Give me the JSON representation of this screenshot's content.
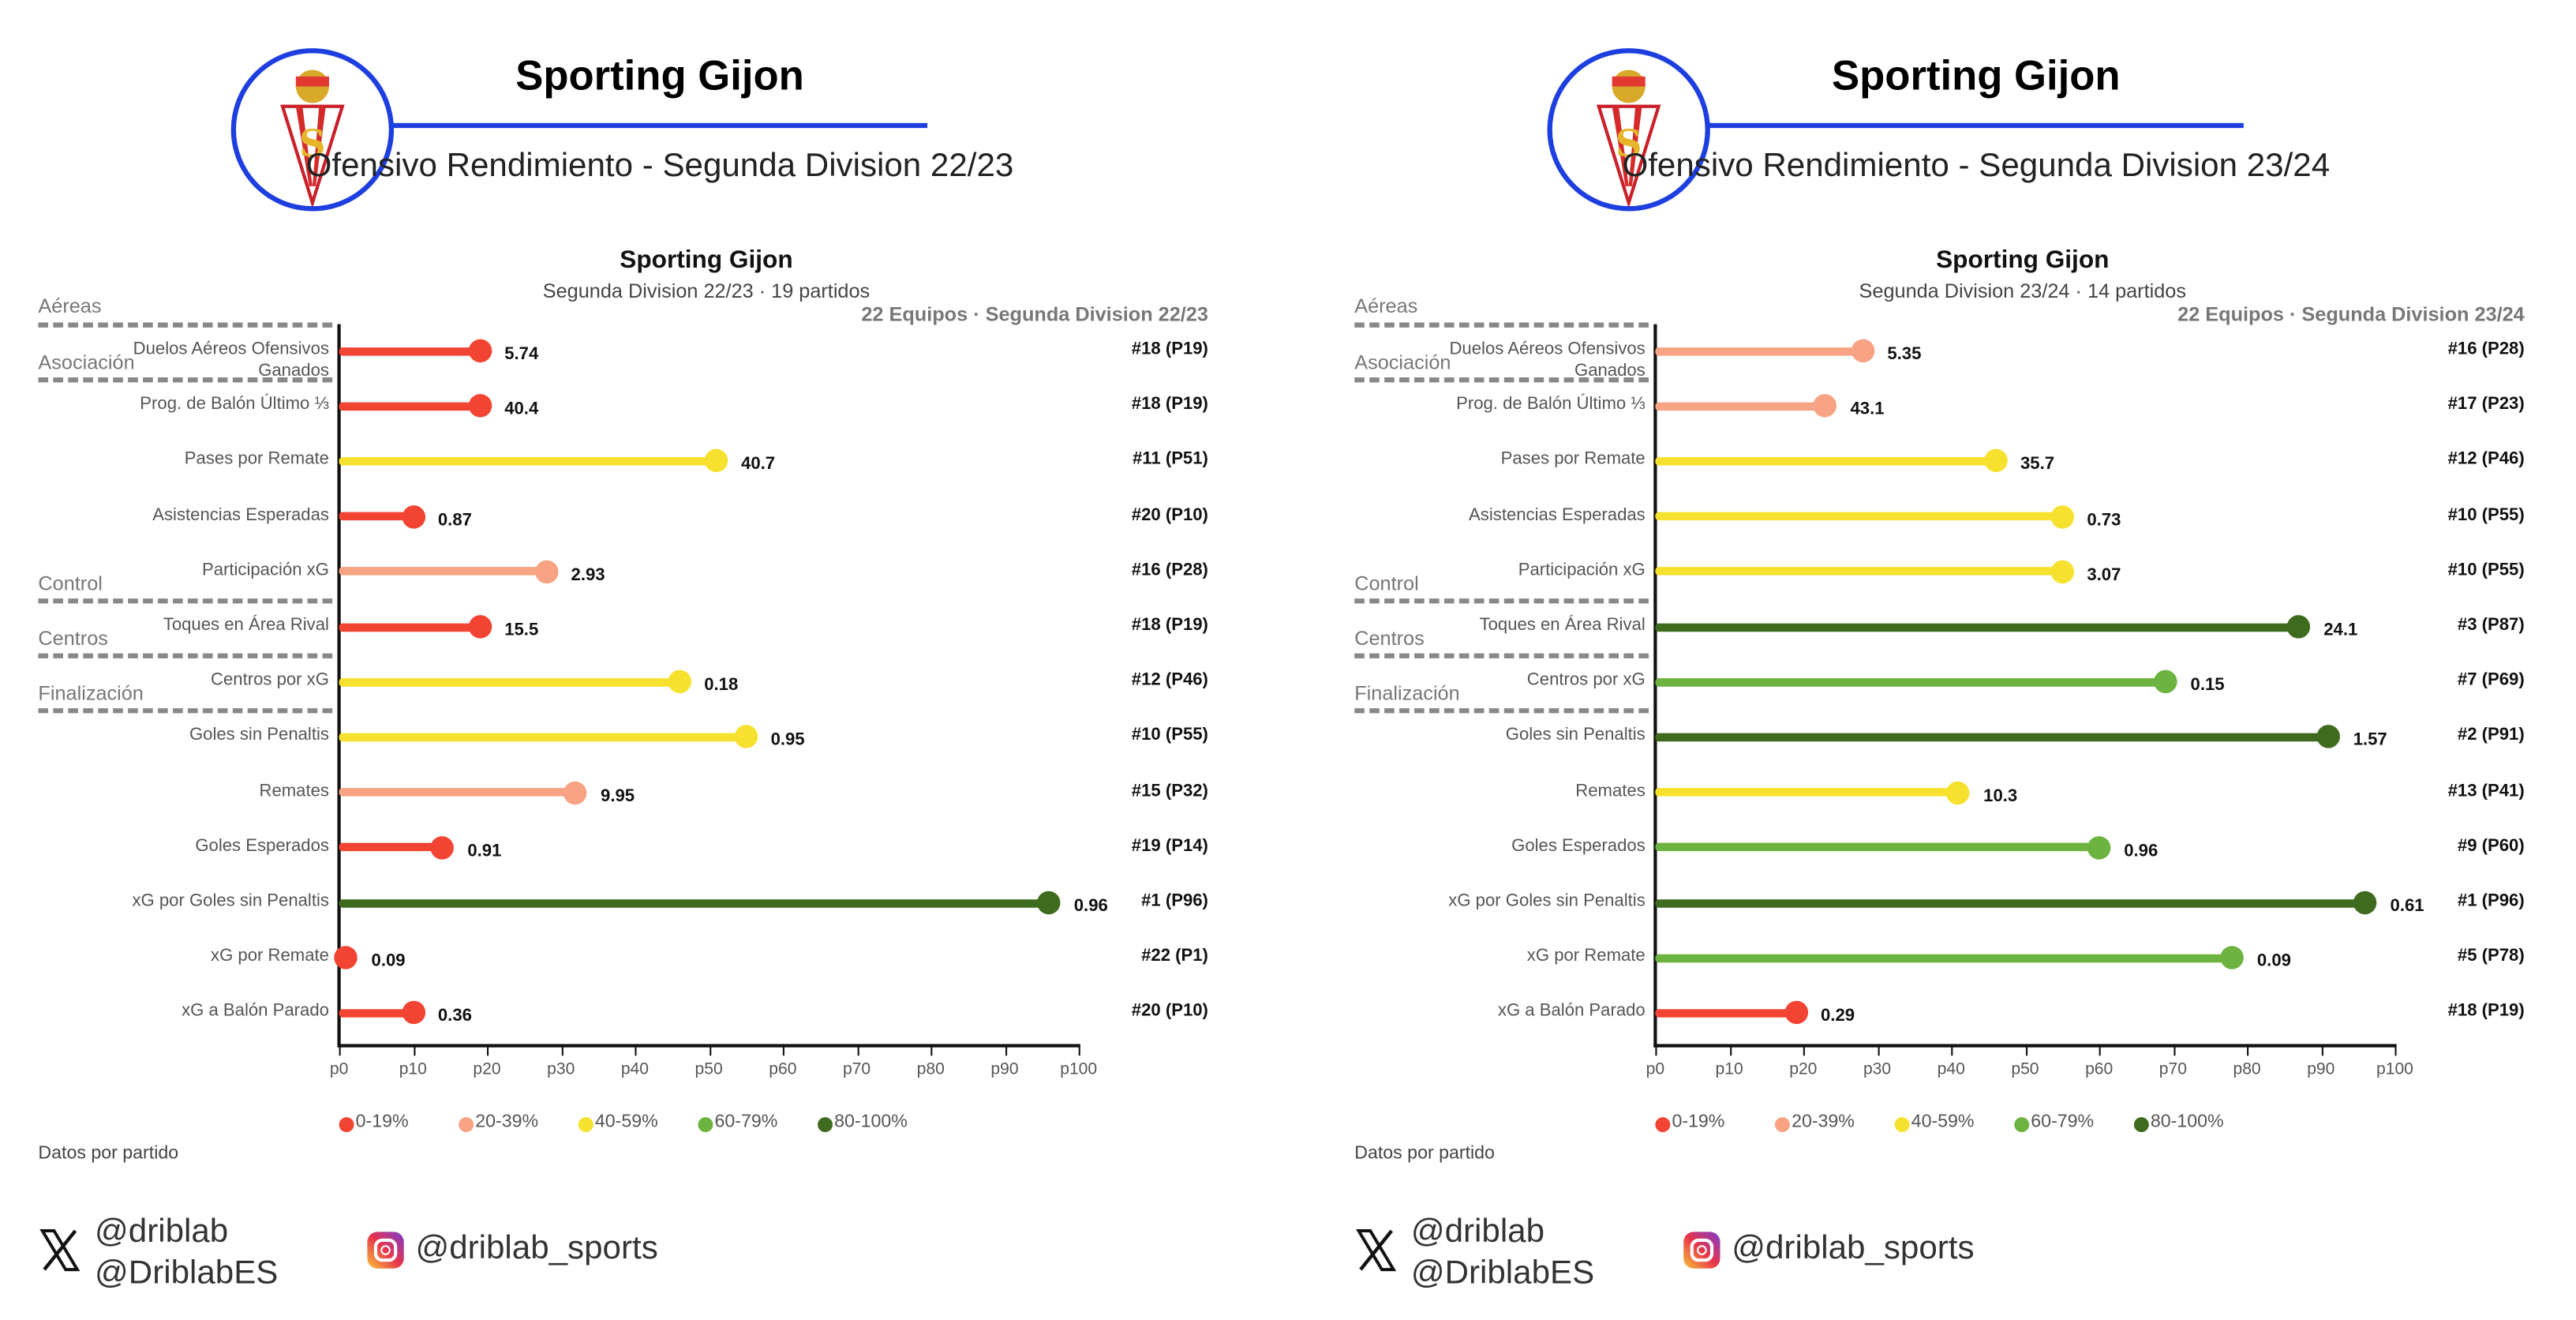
{
  "legend": [
    {
      "label": "0-19%",
      "color": "#f24432"
    },
    {
      "label": "20-39%",
      "color": "#f7a384"
    },
    {
      "label": "40-59%",
      "color": "#f6e22e"
    },
    {
      "label": "60-79%",
      "color": "#6db33f"
    },
    {
      "label": "80-100%",
      "color": "#3f6b1e"
    }
  ],
  "accent_color": "#1d3fe0",
  "groups": [
    "Aéreas",
    "Asociación",
    "Control",
    "Centros",
    "Finalización"
  ],
  "footer": {
    "note": "Datos por partido",
    "twitter_1": "@driblab",
    "twitter_2": "@DriblabES",
    "instagram": "@driblab_sports"
  },
  "panels": [
    {
      "header": {
        "team": "Sporting Gijon",
        "subtitle": "Ofensivo Rendimiento - Segunda Division 22/23"
      }
    },
    {
      "header": {
        "team": "Sporting Gijon",
        "subtitle": "Ofensivo Rendimiento - Segunda Division 23/24"
      }
    }
  ],
  "chart_data": [
    {
      "type": "lollipop",
      "title": "Sporting Gijon",
      "subtitle": "Segunda Division 22/23 · 19 partidos",
      "context": "22 Equipos · Segunda Division 22/23",
      "xlim": [
        0,
        100
      ],
      "ticks": [
        "p0",
        "p10",
        "p20",
        "p30",
        "p40",
        "p50",
        "p60",
        "p70",
        "p80",
        "p90",
        "p100"
      ],
      "metrics": [
        {
          "label": "Duelos Aéreos Ofensivos Ganados",
          "value": "5.74",
          "percentile": 19,
          "rank": "#18 (P19)"
        },
        {
          "label": "Prog. de Balón Último ⅓",
          "value": "40.4",
          "percentile": 19,
          "rank": "#18 (P19)"
        },
        {
          "label": "Pases por Remate",
          "value": "40.7",
          "percentile": 51,
          "rank": "#11 (P51)"
        },
        {
          "label": "Asistencias Esperadas",
          "value": "0.87",
          "percentile": 10,
          "rank": "#20 (P10)"
        },
        {
          "label": "Participación xG",
          "value": "2.93",
          "percentile": 28,
          "rank": "#16 (P28)"
        },
        {
          "label": "Toques en Área Rival",
          "value": "15.5",
          "percentile": 19,
          "rank": "#18 (P19)"
        },
        {
          "label": "Centros por xG",
          "value": "0.18",
          "percentile": 46,
          "rank": "#12 (P46)"
        },
        {
          "label": "Goles sin Penaltis",
          "value": "0.95",
          "percentile": 55,
          "rank": "#10 (P55)"
        },
        {
          "label": "Remates",
          "value": "9.95",
          "percentile": 32,
          "rank": "#15 (P32)"
        },
        {
          "label": "Goles Esperados",
          "value": "0.91",
          "percentile": 14,
          "rank": "#19 (P14)"
        },
        {
          "label": "xG por Goles sin Penaltis",
          "value": "0.96",
          "percentile": 96,
          "rank": "#1 (P96)"
        },
        {
          "label": "xG por Remate",
          "value": "0.09",
          "percentile": 1,
          "rank": "#22 (P1)"
        },
        {
          "label": "xG a Balón Parado",
          "value": "0.36",
          "percentile": 10,
          "rank": "#20 (P10)"
        }
      ]
    },
    {
      "type": "lollipop",
      "title": "Sporting Gijon",
      "subtitle": "Segunda Division 23/24 · 14 partidos",
      "context": "22 Equipos · Segunda Division 23/24",
      "xlim": [
        0,
        100
      ],
      "ticks": [
        "p0",
        "p10",
        "p20",
        "p30",
        "p40",
        "p50",
        "p60",
        "p70",
        "p80",
        "p90",
        "p100"
      ],
      "metrics": [
        {
          "label": "Duelos Aéreos Ofensivos Ganados",
          "value": "5.35",
          "percentile": 28,
          "rank": "#16 (P28)"
        },
        {
          "label": "Prog. de Balón Último ⅓",
          "value": "43.1",
          "percentile": 23,
          "rank": "#17 (P23)"
        },
        {
          "label": "Pases por Remate",
          "value": "35.7",
          "percentile": 46,
          "rank": "#12 (P46)"
        },
        {
          "label": "Asistencias Esperadas",
          "value": "0.73",
          "percentile": 55,
          "rank": "#10 (P55)"
        },
        {
          "label": "Participación xG",
          "value": "3.07",
          "percentile": 55,
          "rank": "#10 (P55)"
        },
        {
          "label": "Toques en Área Rival",
          "value": "24.1",
          "percentile": 87,
          "rank": "#3 (P87)"
        },
        {
          "label": "Centros por xG",
          "value": "0.15",
          "percentile": 69,
          "rank": "#7 (P69)"
        },
        {
          "label": "Goles sin Penaltis",
          "value": "1.57",
          "percentile": 91,
          "rank": "#2 (P91)"
        },
        {
          "label": "Remates",
          "value": "10.3",
          "percentile": 41,
          "rank": "#13 (P41)"
        },
        {
          "label": "Goles Esperados",
          "value": "0.96",
          "percentile": 60,
          "rank": "#9 (P60)"
        },
        {
          "label": "xG por Goles sin Penaltis",
          "value": "0.61",
          "percentile": 96,
          "rank": "#1 (P96)"
        },
        {
          "label": "xG por Remate",
          "value": "0.09",
          "percentile": 78,
          "rank": "#5 (P78)"
        },
        {
          "label": "xG a Balón Parado",
          "value": "0.29",
          "percentile": 19,
          "rank": "#18 (P19)"
        }
      ]
    }
  ]
}
